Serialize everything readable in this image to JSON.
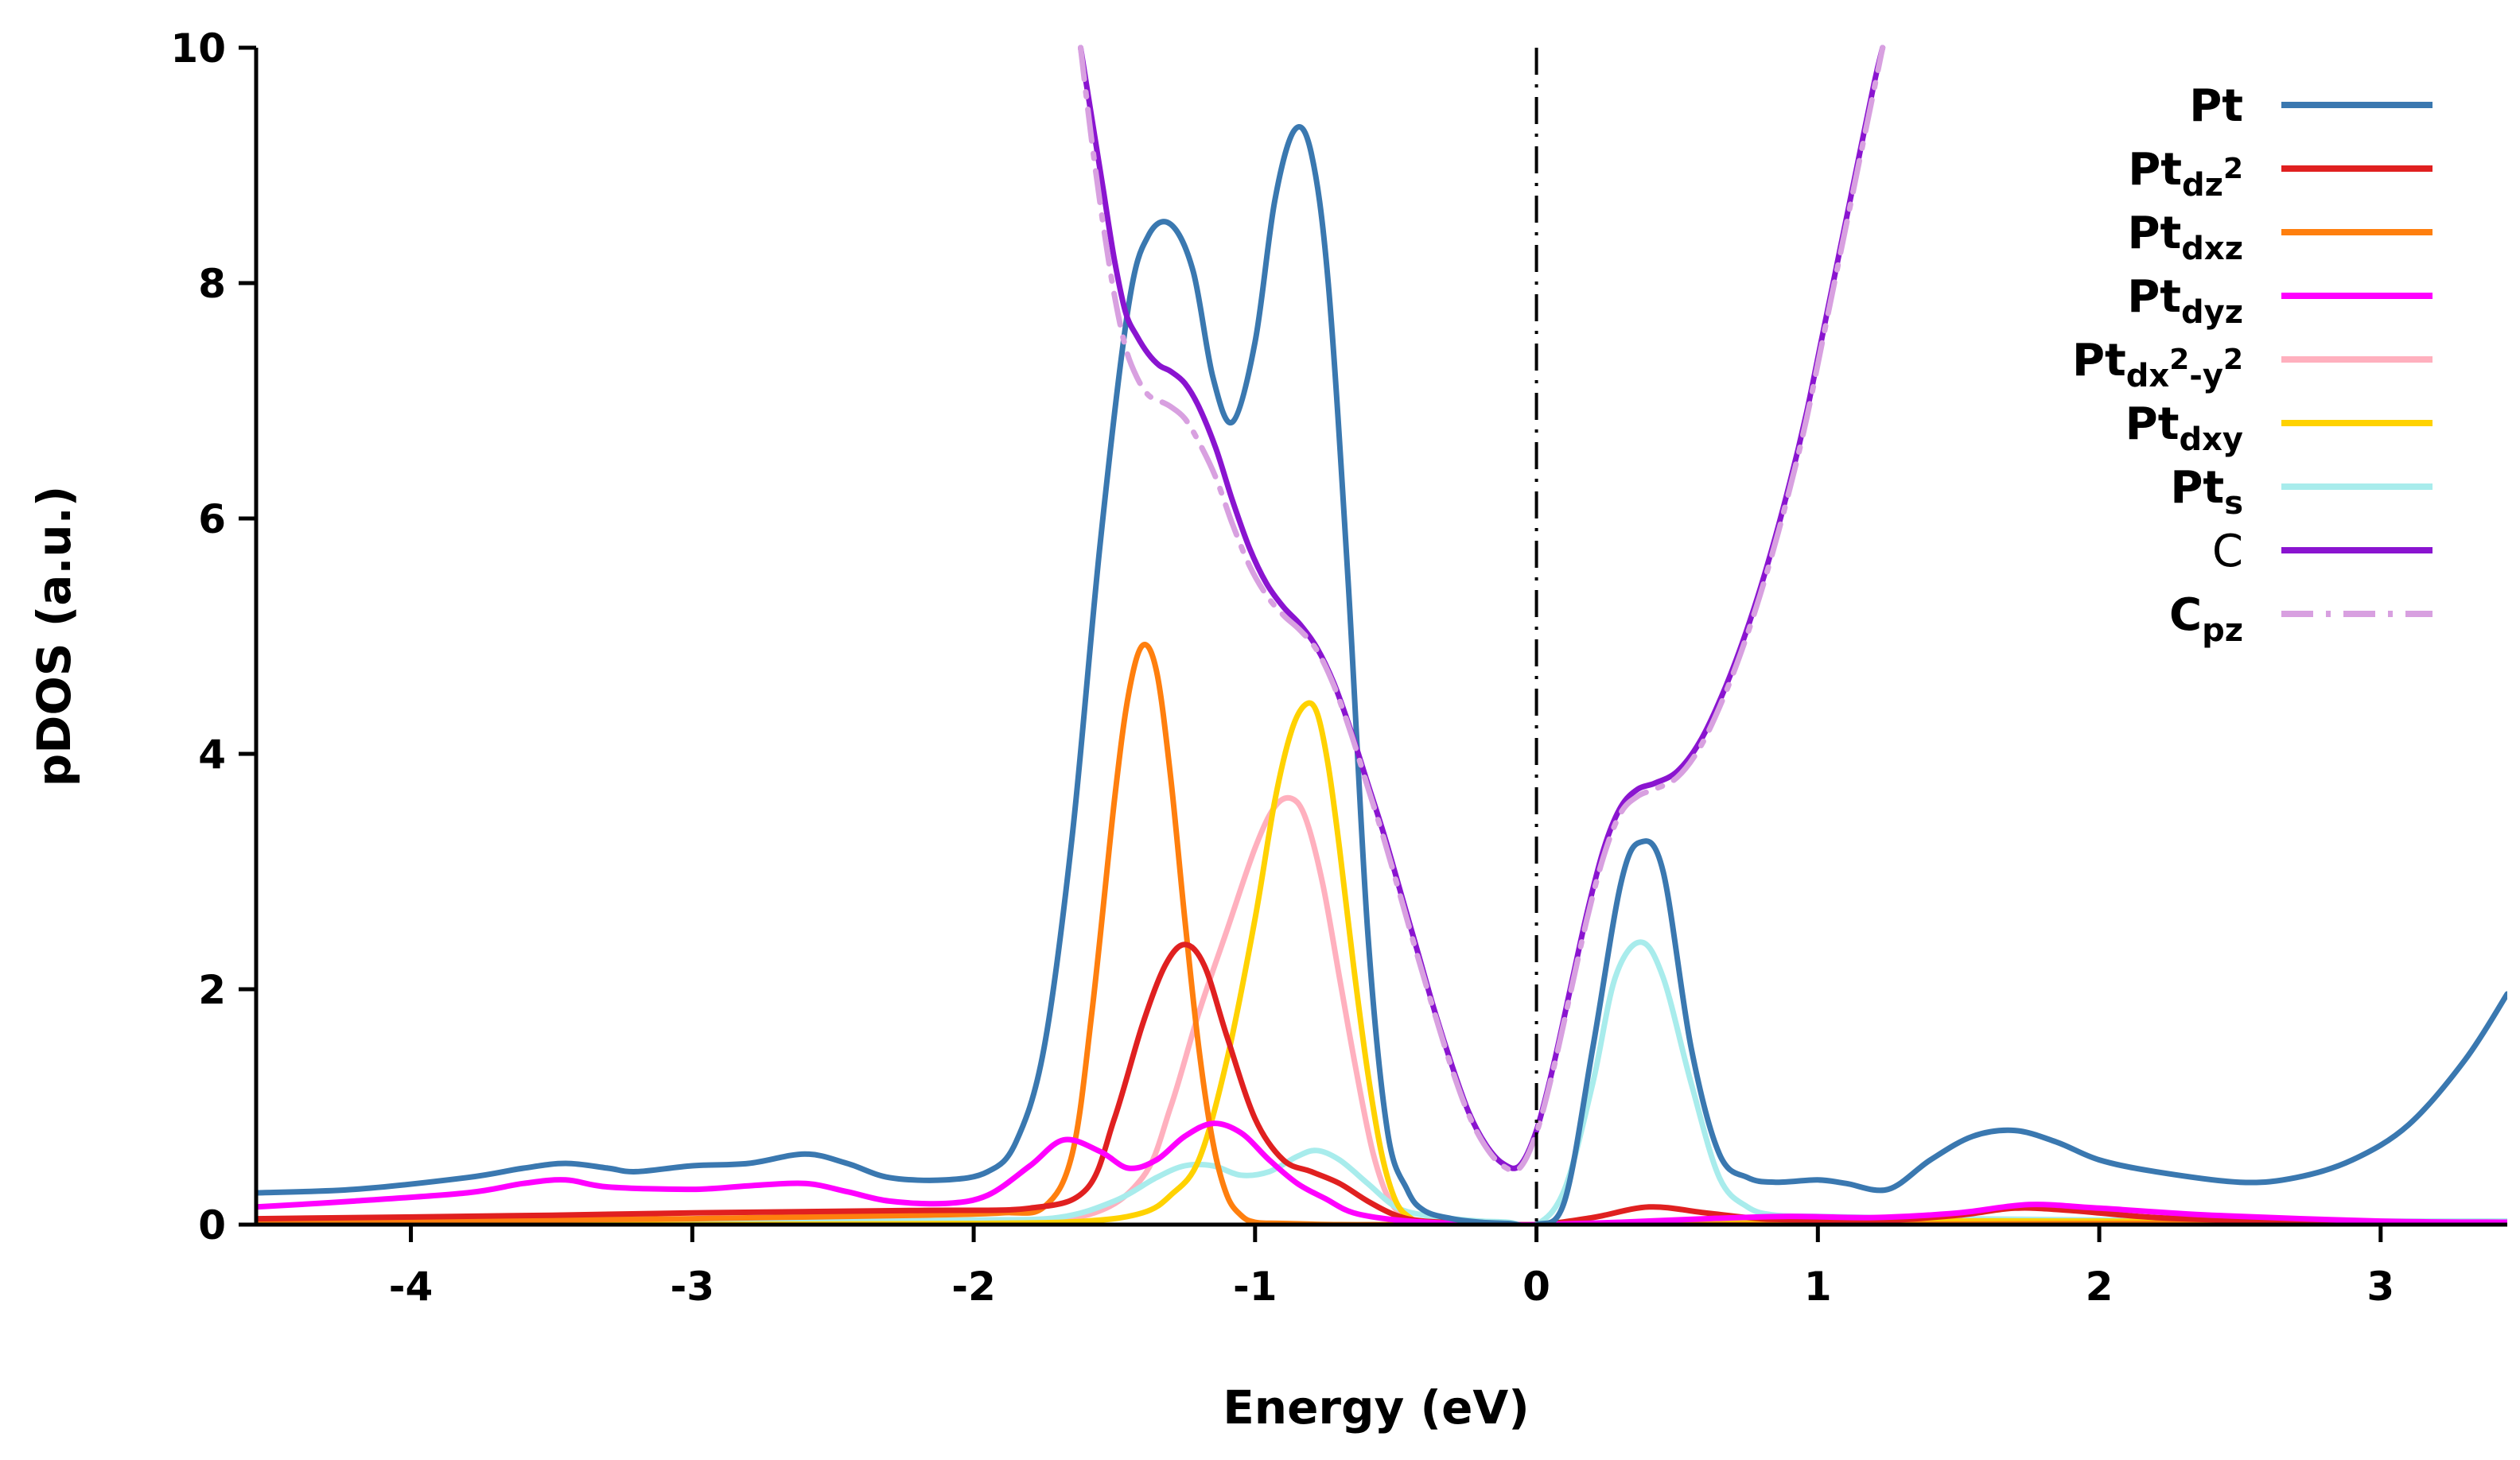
{
  "chart_data": {
    "type": "line",
    "title": "",
    "xlabel": "Energy (eV)",
    "ylabel": "pDOS (a.u.)",
    "xlim": [
      -4.55,
      3.45
    ],
    "ylim": [
      0,
      10
    ],
    "xticks": [
      -4,
      -3,
      -2,
      -1,
      0,
      1,
      2,
      3
    ],
    "xtick_labels": [
      "-4",
      "-3",
      "-2",
      "-1",
      "0",
      "1",
      "2",
      "3"
    ],
    "yticks": [
      0,
      2,
      4,
      6,
      8,
      10
    ],
    "ytick_labels": [
      "0",
      "2",
      "4",
      "6",
      "8",
      "10"
    ],
    "fermi_level": 0,
    "grid": false,
    "legend_position": "top-right",
    "series": [
      {
        "name": "Pt",
        "legend": {
          "base": "Pt"
        },
        "color": "#3A78B0",
        "dash": "solid",
        "x": [
          -4.55,
          -4.2,
          -3.8,
          -3.6,
          -3.45,
          -3.3,
          -3.2,
          -3.0,
          -2.8,
          -2.6,
          -2.45,
          -2.3,
          -2.1,
          -1.95,
          -1.85,
          -1.75,
          -1.65,
          -1.55,
          -1.45,
          -1.38,
          -1.3,
          -1.22,
          -1.15,
          -1.08,
          -1.0,
          -0.93,
          -0.86,
          -0.8,
          -0.74,
          -0.67,
          -0.6,
          -0.53,
          -0.46,
          -0.4,
          -0.3,
          -0.2,
          -0.1,
          0.0,
          0.1,
          0.2,
          0.3,
          0.37,
          0.45,
          0.55,
          0.65,
          0.75,
          0.85,
          1.0,
          1.1,
          1.25,
          1.4,
          1.55,
          1.7,
          1.85,
          2.0,
          2.2,
          2.5,
          2.7,
          2.9,
          3.1,
          3.3,
          3.45
        ],
        "y": [
          0.27,
          0.3,
          0.4,
          0.48,
          0.52,
          0.48,
          0.45,
          0.5,
          0.52,
          0.6,
          0.52,
          0.4,
          0.38,
          0.45,
          0.7,
          1.5,
          3.3,
          5.8,
          7.8,
          8.4,
          8.5,
          8.1,
          7.2,
          6.82,
          7.5,
          8.7,
          9.3,
          9.1,
          8.0,
          5.5,
          2.5,
          0.8,
          0.3,
          0.12,
          0.05,
          0.02,
          0.01,
          0.0,
          0.2,
          1.5,
          2.9,
          3.25,
          3.0,
          1.5,
          0.6,
          0.4,
          0.36,
          0.38,
          0.35,
          0.3,
          0.55,
          0.75,
          0.8,
          0.7,
          0.55,
          0.45,
          0.36,
          0.4,
          0.55,
          0.85,
          1.4,
          1.96
        ]
      },
      {
        "name": "Pt_dz2",
        "legend": {
          "base": "Pt",
          "sub": "dz",
          "sup": "2"
        },
        "color": "#E02020",
        "dash": "solid",
        "x": [
          -4.55,
          -3.5,
          -3.0,
          -2.2,
          -1.8,
          -1.6,
          -1.5,
          -1.4,
          -1.32,
          -1.25,
          -1.18,
          -1.1,
          -1.0,
          -0.9,
          -0.8,
          -0.7,
          -0.6,
          -0.5,
          -0.4,
          -0.2,
          0.0,
          0.2,
          0.4,
          0.6,
          0.8,
          1.0,
          1.2,
          1.5,
          1.7,
          1.9,
          2.2,
          2.6,
          3.0,
          3.45
        ],
        "y": [
          0.05,
          0.08,
          0.1,
          0.12,
          0.14,
          0.3,
          0.9,
          1.7,
          2.2,
          2.38,
          2.2,
          1.6,
          0.9,
          0.55,
          0.45,
          0.35,
          0.2,
          0.08,
          0.03,
          0.01,
          0.0,
          0.06,
          0.15,
          0.1,
          0.05,
          0.04,
          0.03,
          0.08,
          0.14,
          0.12,
          0.06,
          0.03,
          0.02,
          0.02
        ]
      },
      {
        "name": "Pt_dxz",
        "legend": {
          "base": "Pt",
          "sub": "dxz"
        },
        "color": "#FF7F0E",
        "dash": "solid",
        "x": [
          -4.55,
          -3.0,
          -2.2,
          -1.9,
          -1.75,
          -1.65,
          -1.58,
          -1.5,
          -1.45,
          -1.4,
          -1.35,
          -1.3,
          -1.25,
          -1.2,
          -1.15,
          -1.1,
          -1.05,
          -1.0,
          -0.9,
          -0.7,
          -0.5,
          -0.2,
          0.0,
          0.5,
          1.0,
          2.0,
          3.0,
          3.45
        ],
        "y": [
          0.02,
          0.05,
          0.08,
          0.1,
          0.15,
          0.6,
          1.8,
          3.6,
          4.5,
          4.92,
          4.7,
          3.8,
          2.6,
          1.5,
          0.7,
          0.25,
          0.08,
          0.02,
          0.01,
          0.0,
          0.0,
          0.0,
          0.0,
          0.0,
          0.0,
          0.01,
          0.01,
          0.01
        ]
      },
      {
        "name": "Pt_dyz",
        "legend": {
          "base": "Pt",
          "sub": "dyz"
        },
        "color": "#FF00FF",
        "dash": "solid",
        "x": [
          -4.55,
          -4.2,
          -3.8,
          -3.6,
          -3.45,
          -3.3,
          -3.0,
          -2.8,
          -2.6,
          -2.45,
          -2.3,
          -2.1,
          -1.95,
          -1.8,
          -1.68,
          -1.55,
          -1.45,
          -1.35,
          -1.25,
          -1.15,
          -1.05,
          -0.95,
          -0.85,
          -0.75,
          -0.65,
          -0.5,
          -0.3,
          -0.1,
          0.0,
          0.3,
          0.6,
          0.9,
          1.2,
          1.5,
          1.75,
          2.0,
          2.4,
          3.0,
          3.45
        ],
        "y": [
          0.15,
          0.2,
          0.27,
          0.35,
          0.38,
          0.32,
          0.3,
          0.33,
          0.35,
          0.28,
          0.2,
          0.18,
          0.25,
          0.5,
          0.72,
          0.62,
          0.48,
          0.55,
          0.75,
          0.86,
          0.78,
          0.55,
          0.35,
          0.22,
          0.1,
          0.04,
          0.01,
          0.0,
          0.0,
          0.02,
          0.05,
          0.07,
          0.06,
          0.1,
          0.17,
          0.14,
          0.08,
          0.03,
          0.02
        ]
      },
      {
        "name": "Pt_dx2-y2",
        "legend": {
          "base": "Pt",
          "sub": "dx",
          "sup": "2",
          "sub2": "-y",
          "sup2": "2"
        },
        "color": "#FFB0BE",
        "dash": "solid",
        "x": [
          -4.55,
          -3.0,
          -2.0,
          -1.6,
          -1.4,
          -1.3,
          -1.2,
          -1.1,
          -1.0,
          -0.93,
          -0.87,
          -0.82,
          -0.76,
          -0.7,
          -0.64,
          -0.58,
          -0.52,
          -0.45,
          -0.35,
          -0.2,
          0.0,
          0.5,
          1.0,
          2.0,
          3.0,
          3.45
        ],
        "y": [
          0.0,
          0.0,
          0.02,
          0.08,
          0.4,
          1.0,
          1.8,
          2.5,
          3.2,
          3.55,
          3.62,
          3.45,
          2.9,
          2.1,
          1.3,
          0.6,
          0.2,
          0.05,
          0.01,
          0.0,
          0.0,
          0.0,
          0.0,
          0.0,
          0.0,
          0.0
        ]
      },
      {
        "name": "Pt_dxy",
        "legend": {
          "base": "Pt",
          "sub": "dxy"
        },
        "color": "#FFD200",
        "dash": "solid",
        "x": [
          -4.55,
          -3.0,
          -2.0,
          -1.6,
          -1.4,
          -1.3,
          -1.2,
          -1.1,
          -1.0,
          -0.93,
          -0.87,
          -0.82,
          -0.78,
          -0.74,
          -0.7,
          -0.65,
          -0.6,
          -0.55,
          -0.5,
          -0.45,
          -0.4,
          -0.3,
          -0.2,
          0.0,
          0.5,
          1.0,
          2.0,
          3.0,
          3.45
        ],
        "y": [
          0.0,
          0.0,
          0.01,
          0.03,
          0.1,
          0.25,
          0.55,
          1.4,
          2.6,
          3.6,
          4.2,
          4.42,
          4.35,
          3.9,
          3.2,
          2.2,
          1.3,
          0.6,
          0.2,
          0.06,
          0.02,
          0.0,
          0.0,
          0.0,
          0.02,
          0.03,
          0.03,
          0.02,
          0.02
        ]
      },
      {
        "name": "Pt_s",
        "legend": {
          "base": "Pt",
          "sub": "s"
        },
        "color": "#A8ECEC",
        "dash": "solid",
        "x": [
          -4.55,
          -3.5,
          -2.5,
          -2.0,
          -1.7,
          -1.5,
          -1.35,
          -1.25,
          -1.15,
          -1.05,
          -0.95,
          -0.85,
          -0.78,
          -0.7,
          -0.6,
          -0.5,
          -0.4,
          -0.3,
          -0.2,
          -0.1,
          0.0,
          0.1,
          0.2,
          0.28,
          0.37,
          0.45,
          0.55,
          0.65,
          0.75,
          0.85,
          1.0,
          1.2,
          1.5,
          2.0,
          2.5,
          3.0,
          3.45
        ],
        "y": [
          0.01,
          0.02,
          0.03,
          0.04,
          0.06,
          0.2,
          0.4,
          0.5,
          0.5,
          0.42,
          0.45,
          0.58,
          0.63,
          0.55,
          0.35,
          0.15,
          0.08,
          0.05,
          0.03,
          0.02,
          0.0,
          0.3,
          1.2,
          2.1,
          2.4,
          2.1,
          1.2,
          0.4,
          0.15,
          0.08,
          0.07,
          0.06,
          0.05,
          0.04,
          0.03,
          0.03,
          0.03
        ]
      },
      {
        "name": "C",
        "legend": {
          "base": "C",
          "plain": true
        },
        "color": "#8A14D0",
        "dash": "solid",
        "x": [
          -1.62,
          -1.58,
          -1.54,
          -1.5,
          -1.46,
          -1.42,
          -1.38,
          -1.34,
          -1.3,
          -1.25,
          -1.2,
          -1.14,
          -1.08,
          -1.02,
          -0.96,
          -0.9,
          -0.84,
          -0.78,
          -0.72,
          -0.66,
          -0.6,
          -0.54,
          -0.48,
          -0.42,
          -0.36,
          -0.3,
          -0.24,
          -0.18,
          -0.12,
          -0.06,
          0.0,
          0.06,
          0.12,
          0.18,
          0.24,
          0.3,
          0.36,
          0.42,
          0.5,
          0.58,
          0.66,
          0.74,
          0.82,
          0.9,
          0.96,
          1.02,
          1.08,
          1.14,
          1.2,
          1.23
        ],
        "y": [
          10.0,
          9.4,
          8.8,
          8.2,
          7.75,
          7.55,
          7.4,
          7.3,
          7.25,
          7.15,
          6.95,
          6.6,
          6.15,
          5.75,
          5.45,
          5.25,
          5.1,
          4.9,
          4.6,
          4.2,
          3.75,
          3.3,
          2.8,
          2.3,
          1.8,
          1.35,
          0.95,
          0.68,
          0.52,
          0.5,
          0.8,
          1.35,
          2.0,
          2.65,
          3.2,
          3.55,
          3.7,
          3.75,
          3.85,
          4.1,
          4.5,
          5.0,
          5.6,
          6.3,
          6.9,
          7.6,
          8.3,
          9.0,
          9.7,
          10.0
        ]
      },
      {
        "name": "C_pz",
        "legend": {
          "base": "C",
          "sub": "pz"
        },
        "color": "#D8A0E0",
        "dash": "dashdot",
        "x": [
          -1.62,
          -1.58,
          -1.54,
          -1.5,
          -1.46,
          -1.42,
          -1.38,
          -1.34,
          -1.3,
          -1.25,
          -1.2,
          -1.14,
          -1.08,
          -1.02,
          -0.96,
          -0.9,
          -0.84,
          -0.78,
          -0.72,
          -0.66,
          -0.6,
          -0.54,
          -0.48,
          -0.42,
          -0.36,
          -0.3,
          -0.24,
          -0.18,
          -0.12,
          -0.06,
          0.0,
          0.06,
          0.12,
          0.18,
          0.24,
          0.3,
          0.36,
          0.42,
          0.5,
          0.58,
          0.66,
          0.74,
          0.82,
          0.9,
          0.96,
          1.02,
          1.08,
          1.14,
          1.2,
          1.23
        ],
        "y": [
          10.0,
          9.2,
          8.5,
          7.9,
          7.45,
          7.2,
          7.05,
          7.0,
          6.95,
          6.85,
          6.65,
          6.35,
          5.95,
          5.6,
          5.35,
          5.18,
          5.05,
          4.88,
          4.58,
          4.18,
          3.72,
          3.26,
          2.76,
          2.26,
          1.78,
          1.32,
          0.93,
          0.66,
          0.5,
          0.48,
          0.78,
          1.32,
          1.96,
          2.6,
          3.14,
          3.5,
          3.64,
          3.7,
          3.8,
          4.05,
          4.45,
          4.95,
          5.55,
          6.25,
          6.85,
          7.55,
          8.25,
          8.95,
          9.65,
          10.0
        ]
      }
    ]
  }
}
